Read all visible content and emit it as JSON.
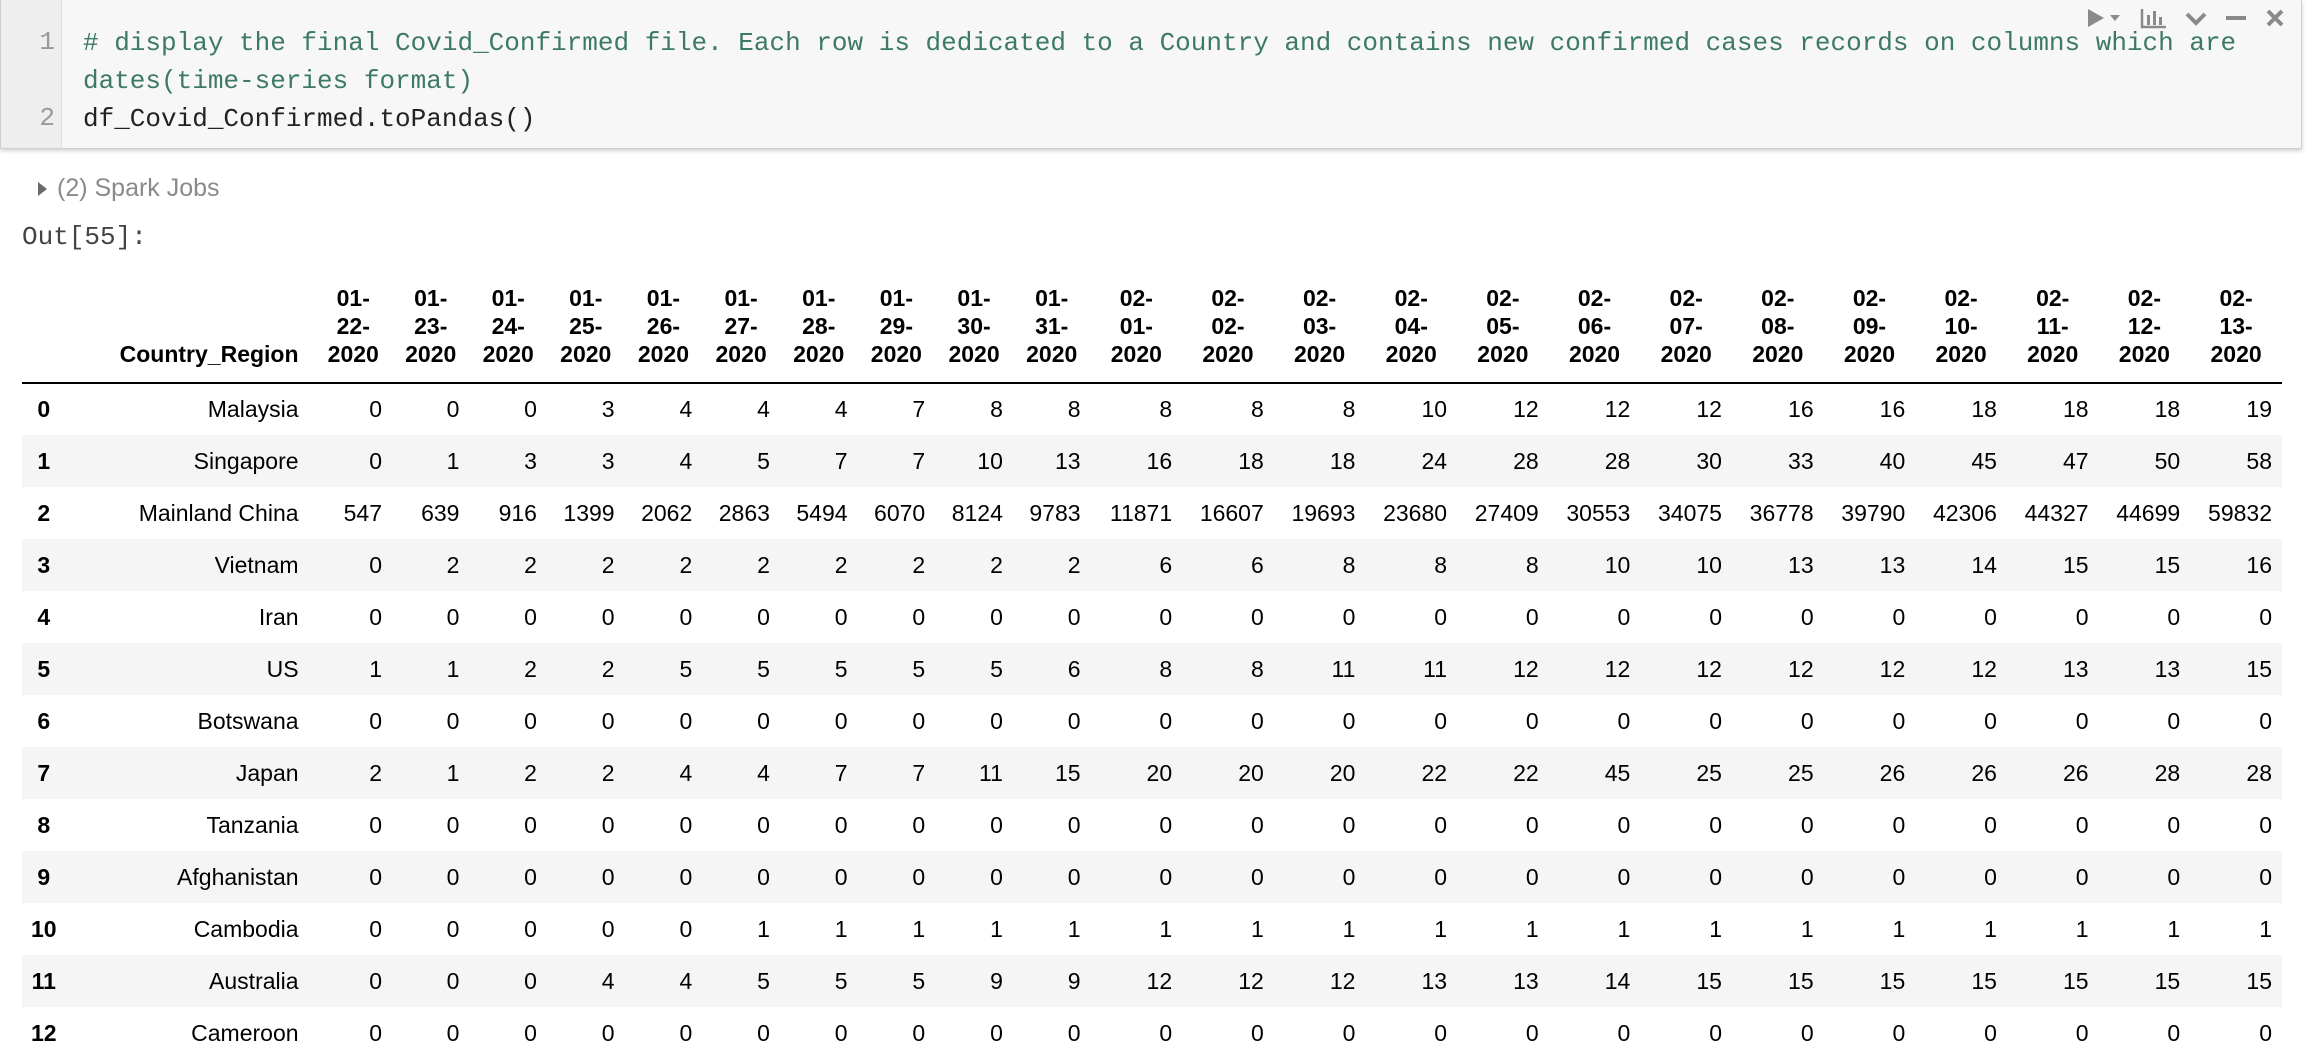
{
  "cell": {
    "line_numbers": [
      "1",
      "2"
    ],
    "comment_line_1": "# display the final Covid_Confirmed file. Each row is dedicated to a Country and contains new confirmed cases records on columns which are",
    "comment_line_2": "dates(time-series format)",
    "code_line": "df_Covid_Confirmed.toPandas()",
    "tools": [
      "run-icon",
      "chart-icon",
      "collapse-icon",
      "minimize-icon",
      "close-icon"
    ]
  },
  "spark_jobs": {
    "label": "(2) Spark Jobs"
  },
  "out_prompt": "Out[55]:",
  "table": {
    "index_header": "",
    "country_header": "Country_Region",
    "dates": [
      [
        "01-",
        "22-",
        "2020"
      ],
      [
        "01-",
        "23-",
        "2020"
      ],
      [
        "01-",
        "24-",
        "2020"
      ],
      [
        "01-",
        "25-",
        "2020"
      ],
      [
        "01-",
        "26-",
        "2020"
      ],
      [
        "01-",
        "27-",
        "2020"
      ],
      [
        "01-",
        "28-",
        "2020"
      ],
      [
        "01-",
        "29-",
        "2020"
      ],
      [
        "01-",
        "30-",
        "2020"
      ],
      [
        "01-",
        "31-",
        "2020"
      ],
      [
        "02-",
        "01-",
        "2020"
      ],
      [
        "02-",
        "02-",
        "2020"
      ],
      [
        "02-",
        "03-",
        "2020"
      ],
      [
        "02-",
        "04-",
        "2020"
      ],
      [
        "02-",
        "05-",
        "2020"
      ],
      [
        "02-",
        "06-",
        "2020"
      ],
      [
        "02-",
        "07-",
        "2020"
      ],
      [
        "02-",
        "08-",
        "2020"
      ],
      [
        "02-",
        "09-",
        "2020"
      ],
      [
        "02-",
        "10-",
        "2020"
      ],
      [
        "02-",
        "11-",
        "2020"
      ],
      [
        "02-",
        "12-",
        "2020"
      ],
      [
        "02-",
        "13-",
        "2020"
      ]
    ],
    "rows": [
      {
        "index": "0",
        "country": "Malaysia",
        "values": [
          "0",
          "0",
          "0",
          "3",
          "4",
          "4",
          "4",
          "7",
          "8",
          "8",
          "8",
          "8",
          "8",
          "10",
          "12",
          "12",
          "12",
          "16",
          "16",
          "18",
          "18",
          "18",
          "19"
        ]
      },
      {
        "index": "1",
        "country": "Singapore",
        "values": [
          "0",
          "1",
          "3",
          "3",
          "4",
          "5",
          "7",
          "7",
          "10",
          "13",
          "16",
          "18",
          "18",
          "24",
          "28",
          "28",
          "30",
          "33",
          "40",
          "45",
          "47",
          "50",
          "58"
        ]
      },
      {
        "index": "2",
        "country": "Mainland China",
        "values": [
          "547",
          "639",
          "916",
          "1399",
          "2062",
          "2863",
          "5494",
          "6070",
          "8124",
          "9783",
          "11871",
          "16607",
          "19693",
          "23680",
          "27409",
          "30553",
          "34075",
          "36778",
          "39790",
          "42306",
          "44327",
          "44699",
          "59832"
        ]
      },
      {
        "index": "3",
        "country": "Vietnam",
        "values": [
          "0",
          "2",
          "2",
          "2",
          "2",
          "2",
          "2",
          "2",
          "2",
          "2",
          "6",
          "6",
          "8",
          "8",
          "8",
          "10",
          "10",
          "13",
          "13",
          "14",
          "15",
          "15",
          "16"
        ]
      },
      {
        "index": "4",
        "country": "Iran",
        "values": [
          "0",
          "0",
          "0",
          "0",
          "0",
          "0",
          "0",
          "0",
          "0",
          "0",
          "0",
          "0",
          "0",
          "0",
          "0",
          "0",
          "0",
          "0",
          "0",
          "0",
          "0",
          "0",
          "0"
        ]
      },
      {
        "index": "5",
        "country": "US",
        "values": [
          "1",
          "1",
          "2",
          "2",
          "5",
          "5",
          "5",
          "5",
          "5",
          "6",
          "8",
          "8",
          "11",
          "11",
          "12",
          "12",
          "12",
          "12",
          "12",
          "12",
          "13",
          "13",
          "15"
        ]
      },
      {
        "index": "6",
        "country": "Botswana",
        "values": [
          "0",
          "0",
          "0",
          "0",
          "0",
          "0",
          "0",
          "0",
          "0",
          "0",
          "0",
          "0",
          "0",
          "0",
          "0",
          "0",
          "0",
          "0",
          "0",
          "0",
          "0",
          "0",
          "0"
        ]
      },
      {
        "index": "7",
        "country": "Japan",
        "values": [
          "2",
          "1",
          "2",
          "2",
          "4",
          "4",
          "7",
          "7",
          "11",
          "15",
          "20",
          "20",
          "20",
          "22",
          "22",
          "45",
          "25",
          "25",
          "26",
          "26",
          "26",
          "28",
          "28"
        ]
      },
      {
        "index": "8",
        "country": "Tanzania",
        "values": [
          "0",
          "0",
          "0",
          "0",
          "0",
          "0",
          "0",
          "0",
          "0",
          "0",
          "0",
          "0",
          "0",
          "0",
          "0",
          "0",
          "0",
          "0",
          "0",
          "0",
          "0",
          "0",
          "0"
        ]
      },
      {
        "index": "9",
        "country": "Afghanistan",
        "values": [
          "0",
          "0",
          "0",
          "0",
          "0",
          "0",
          "0",
          "0",
          "0",
          "0",
          "0",
          "0",
          "0",
          "0",
          "0",
          "0",
          "0",
          "0",
          "0",
          "0",
          "0",
          "0",
          "0"
        ]
      },
      {
        "index": "10",
        "country": "Cambodia",
        "values": [
          "0",
          "0",
          "0",
          "0",
          "0",
          "1",
          "1",
          "1",
          "1",
          "1",
          "1",
          "1",
          "1",
          "1",
          "1",
          "1",
          "1",
          "1",
          "1",
          "1",
          "1",
          "1",
          "1"
        ]
      },
      {
        "index": "11",
        "country": "Australia",
        "values": [
          "0",
          "0",
          "0",
          "4",
          "4",
          "5",
          "5",
          "5",
          "9",
          "9",
          "12",
          "12",
          "12",
          "13",
          "13",
          "14",
          "15",
          "15",
          "15",
          "15",
          "15",
          "15",
          "15"
        ]
      },
      {
        "index": "12",
        "country": "Cameroon",
        "values": [
          "0",
          "0",
          "0",
          "0",
          "0",
          "0",
          "0",
          "0",
          "0",
          "0",
          "0",
          "0",
          "0",
          "0",
          "0",
          "0",
          "0",
          "0",
          "0",
          "0",
          "0",
          "0",
          "0"
        ]
      }
    ]
  }
}
